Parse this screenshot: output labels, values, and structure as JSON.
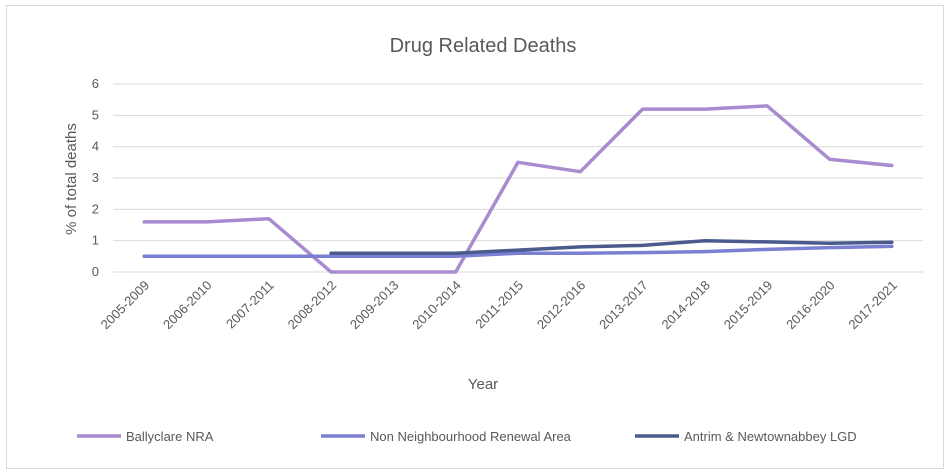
{
  "chart_data": {
    "type": "line",
    "title": "Drug Related Deaths",
    "xlabel": "Year",
    "ylabel": "% of total deaths",
    "ylim": [
      0,
      6
    ],
    "yticks": [
      0,
      1,
      2,
      3,
      4,
      5,
      6
    ],
    "grid": true,
    "legend_position": "bottom",
    "categories": [
      "2005-2009",
      "2006-2010",
      "2007-2011",
      "2008-2012",
      "2009-2013",
      "2010-2014",
      "2011-2015",
      "2012-2016",
      "2013-2017",
      "2014-2018",
      "2015-2019",
      "2016-2020",
      "2017-2021"
    ],
    "series": [
      {
        "name": "Ballyclare NRA",
        "color": "#a98bd0",
        "values": [
          1.6,
          1.6,
          1.7,
          0,
          0,
          0,
          3.5,
          3.2,
          5.2,
          5.2,
          5.3,
          3.6,
          3.4
        ]
      },
      {
        "name": "Non Neighbourhood Renewal Area",
        "color": "#7b7fd1",
        "values": [
          0.5,
          0.5,
          0.5,
          0.5,
          0.5,
          0.5,
          0.6,
          0.6,
          0.62,
          0.65,
          0.72,
          0.78,
          0.82
        ]
      },
      {
        "name": "Antrim & Newtownabbey LGD",
        "color": "#4a5a8c",
        "values": [
          null,
          null,
          null,
          0.6,
          0.6,
          0.6,
          0.7,
          0.8,
          0.85,
          1.0,
          0.96,
          0.92,
          0.95
        ]
      }
    ]
  }
}
